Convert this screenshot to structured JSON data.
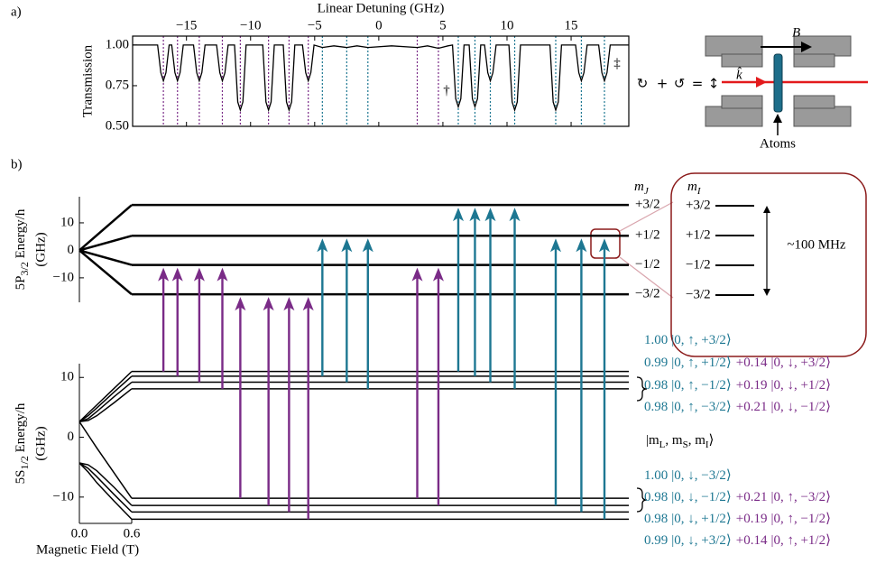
{
  "chart_data": [
    {
      "type": "line",
      "panel_label": "a)",
      "xlabel": "Linear Detuning (GHz)",
      "ylabel": "Transmission",
      "color": "#000000",
      "x": [
        -19.2,
        -17.25,
        -17.0,
        -16.8,
        -16.6,
        -16.35,
        -16.15,
        -15.9,
        -15.7,
        -15.5,
        -15.25,
        -14.45,
        -14.2,
        -14.0,
        -13.8,
        -13.55,
        -12.65,
        -12.4,
        -12.2,
        -12.0,
        -11.75,
        -11.25,
        -11.0,
        -10.8,
        -10.6,
        -10.35,
        -9.05,
        -8.8,
        -8.6,
        -8.4,
        -8.15,
        -7.45,
        -7.2,
        -7.0,
        -6.8,
        -6.55,
        -5.95,
        -5.7,
        -5.5,
        -5.3,
        -5.05,
        -4.4,
        -3.5,
        -2.5,
        -1.7,
        -0.85,
        1.0,
        3.0,
        3.8,
        4.65,
        5.4,
        5.75,
        6.0,
        6.2,
        6.4,
        6.65,
        7.05,
        7.3,
        7.5,
        7.7,
        7.95,
        8.25,
        8.5,
        8.7,
        8.9,
        9.15,
        10.15,
        10.4,
        10.6,
        10.8,
        11.05,
        13.35,
        13.6,
        13.8,
        14.0,
        14.25,
        15.35,
        15.6,
        15.8,
        16.0,
        16.25,
        17.15,
        17.4,
        17.6,
        17.8,
        18.05,
        19.5
      ],
      "values": [
        1.0,
        1.0,
        0.83,
        0.78,
        0.83,
        1.0,
        1.0,
        0.83,
        0.78,
        0.83,
        1.0,
        1.0,
        0.83,
        0.78,
        0.83,
        1.0,
        1.0,
        0.83,
        0.78,
        0.83,
        1.0,
        1.0,
        0.65,
        0.6,
        0.65,
        1.0,
        1.0,
        0.65,
        0.6,
        0.65,
        1.0,
        1.0,
        0.65,
        0.6,
        0.65,
        1.0,
        1.0,
        0.83,
        0.78,
        0.83,
        1.0,
        0.985,
        0.995,
        0.985,
        0.995,
        0.985,
        0.995,
        0.985,
        0.995,
        0.98,
        0.995,
        1.0,
        0.67,
        0.62,
        0.67,
        1.0,
        1.0,
        0.67,
        0.62,
        0.67,
        1.0,
        1.0,
        0.83,
        0.78,
        0.83,
        1.0,
        1.0,
        0.65,
        0.6,
        0.65,
        1.0,
        1.0,
        0.65,
        0.6,
        0.65,
        1.0,
        1.0,
        0.83,
        0.78,
        0.83,
        1.0,
        1.0,
        0.83,
        0.78,
        0.83,
        1.0,
        1.0
      ],
      "xlim": [
        -19.2,
        19.5
      ],
      "ylim": [
        0.5,
        1.055
      ],
      "xticks": [
        {
          "value": -15,
          "label": "−15"
        },
        {
          "value": -10,
          "label": "−10"
        },
        {
          "value": -5,
          "label": "−5"
        },
        0,
        5,
        10,
        15
      ],
      "yticks": [
        {
          "value": 0.5,
          "label": "0.50"
        },
        {
          "value": 0.75,
          "label": "0.75"
        },
        {
          "value": 1,
          "label": "1.00"
        }
      ],
      "resonances": [
        {
          "x": -16.8,
          "color": "#7a2b87",
          "ground": 0,
          "excited": 2
        },
        {
          "x": -15.7,
          "color": "#7a2b87",
          "ground": 1,
          "excited": 2
        },
        {
          "x": -14.0,
          "color": "#7a2b87",
          "ground": 2,
          "excited": 2
        },
        {
          "x": -12.2,
          "color": "#7a2b87",
          "ground": 3,
          "excited": 2
        },
        {
          "x": -10.8,
          "color": "#7a2b87",
          "ground": 4,
          "excited": 3
        },
        {
          "x": -8.6,
          "color": "#7a2b87",
          "ground": 5,
          "excited": 3
        },
        {
          "x": -7.0,
          "color": "#7a2b87",
          "ground": 6,
          "excited": 3
        },
        {
          "x": -5.5,
          "color": "#7a2b87",
          "ground": 7,
          "excited": 3
        },
        {
          "x": -4.4,
          "color": "#1d7792",
          "ground": 1,
          "excited": 1
        },
        {
          "x": -2.5,
          "color": "#1d7792",
          "ground": 2,
          "excited": 1
        },
        {
          "x": -0.85,
          "color": "#1d7792",
          "ground": 3,
          "excited": 1
        },
        {
          "x": 3.0,
          "color": "#7a2b87",
          "ground": 4,
          "excited": 2
        },
        {
          "x": 4.65,
          "color": "#7a2b87",
          "ground": 5,
          "excited": 2
        },
        {
          "x": 6.2,
          "color": "#1d7792",
          "ground": 0,
          "excited": 0
        },
        {
          "x": 7.5,
          "color": "#1d7792",
          "ground": 1,
          "excited": 0
        },
        {
          "x": 8.7,
          "color": "#1d7792",
          "ground": 2,
          "excited": 0
        },
        {
          "x": 10.6,
          "color": "#1d7792",
          "ground": 3,
          "excited": 0
        },
        {
          "x": 13.8,
          "color": "#1d7792",
          "ground": 5,
          "excited": 1
        },
        {
          "x": 15.8,
          "color": "#1d7792",
          "ground": 6,
          "excited": 1
        },
        {
          "x": 17.6,
          "color": "#1d7792",
          "ground": 7,
          "excited": 1
        }
      ],
      "annotations": [
        "†",
        "‡"
      ]
    },
    {
      "type": "levels",
      "panel_label": "b)",
      "xlabel": "Magnetic Field (T)",
      "color": "#000000",
      "xlim": [
        0,
        0.6
      ],
      "xticks": [
        {
          "value": 0,
          "label": "0.0"
        },
        {
          "value": 0.6,
          "label": "0.6"
        }
      ],
      "excited": {
        "ylabel": [
          "5P",
          "3/2",
          " Energy/h"
        ],
        "ylabel_unit": "(GHz)",
        "ylim": [
          -18.9,
          19.5
        ],
        "yticks": [
          {
            "value": -10,
            "label": "−10"
          },
          0,
          10
        ],
        "x": [
          0,
          0.6
        ],
        "levels": [
          {
            "values": [
              0,
              16.5
            ]
          },
          {
            "values": [
              0,
              5.3
            ]
          },
          {
            "values": [
              0,
              -5.3
            ]
          },
          {
            "values": [
              0,
              -16.0
            ]
          }
        ]
      },
      "ground": {
        "ylabel": [
          "5S",
          "1/2",
          " Energy/h"
        ],
        "ylabel_unit": "(GHz)",
        "ylim": [
          -14.4,
          12.3
        ],
        "yticks": [
          {
            "value": -10,
            "label": "−10"
          },
          0,
          10
        ],
        "x": [
          0,
          0.1,
          0.2,
          0.4,
          0.6
        ],
        "levels": [
          {
            "values": [
              2.6,
              4.0,
              5.4,
              8.2,
              11.0
            ]
          },
          {
            "values": [
              2.6,
              3.6,
              4.9,
              7.6,
              10.2
            ]
          },
          {
            "values": [
              2.6,
              3.1,
              4.3,
              6.8,
              9.2
            ]
          },
          {
            "values": [
              2.6,
              2.8,
              3.6,
              5.8,
              8.1
            ]
          },
          {
            "values": [
              2.6,
              0.4,
              -1.8,
              -6.0,
              -10.2
            ]
          },
          {
            "values": [
              -4.3,
              -4.6,
              -5.6,
              -8.4,
              -11.4
            ]
          },
          {
            "values": [
              -4.3,
              -5.2,
              -6.6,
              -9.6,
              -12.5
            ]
          },
          {
            "values": [
              -4.3,
              -5.8,
              -7.6,
              -10.7,
              -13.7
            ]
          }
        ]
      }
    }
  ],
  "atom_setup": {
    "polarization": [
      {
        "text": "↻",
        "color": "#7a2b87"
      },
      {
        "text": "+"
      },
      {
        "text": "↺",
        "color": "#1d7792"
      },
      {
        "text": "="
      },
      {
        "text": "↕"
      }
    ],
    "k": "k̂",
    "k_color": "#e31a1c",
    "B": "B",
    "atoms": "Atoms"
  },
  "inset": {
    "mJ": [
      "m",
      "J"
    ],
    "mI": [
      "m",
      "I"
    ],
    "mJ_values": [
      "+3/2",
      "+1/2",
      "−1/2",
      "−3/2"
    ],
    "mI_values": [
      "+3/2",
      "+1/2",
      "−1/2",
      "−3/2"
    ],
    "spacing": "~100 MHz"
  },
  "states": {
    "colors": [
      "#1d7792",
      "#7a2b87"
    ],
    "header": [
      "|m",
      "L",
      ", m",
      "S",
      ", m",
      "I",
      "⟩"
    ],
    "upper": [
      [
        {
          "coef": "1.00",
          "ket": "|0, ↑, +3/2⟩"
        }
      ],
      [
        {
          "coef": "0.99",
          "ket": "|0, ↑, +1/2⟩"
        },
        {
          "coef": "+0.14",
          "ket": "|0, ↓, +3/2⟩"
        }
      ],
      [
        {
          "coef": "0.98",
          "ket": "|0, ↑, −1/2⟩"
        },
        {
          "coef": "+0.19",
          "ket": "|0, ↓, +1/2⟩"
        }
      ],
      [
        {
          "coef": "0.98",
          "ket": "|0, ↑, −3/2⟩"
        },
        {
          "coef": "+0.21",
          "ket": "|0, ↓, −1/2⟩"
        }
      ]
    ],
    "lower": [
      [
        {
          "coef": "1.00",
          "ket": "|0, ↓, −3/2⟩"
        }
      ],
      [
        {
          "coef": "0.98",
          "ket": "|0, ↓, −1/2⟩"
        },
        {
          "coef": "+0.21",
          "ket": "|0, ↑, −3/2⟩"
        }
      ],
      [
        {
          "coef": "0.98",
          "ket": "|0, ↓, +1/2⟩"
        },
        {
          "coef": "+0.19",
          "ket": "|0, ↑, −1/2⟩"
        }
      ],
      [
        {
          "coef": "0.99",
          "ket": "|0, ↓, +3/2⟩"
        },
        {
          "coef": "+0.14",
          "ket": "|0, ↑, +1/2⟩"
        }
      ]
    ]
  }
}
